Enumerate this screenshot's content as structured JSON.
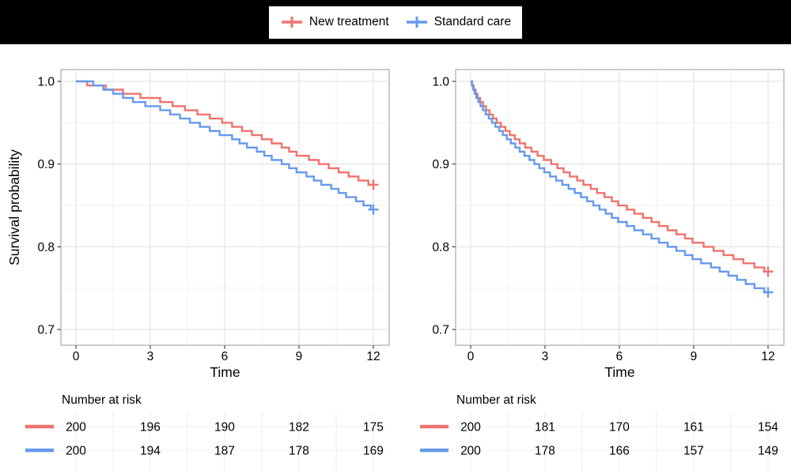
{
  "colors": {
    "new_treatment": "#F0736E",
    "standard_care": "#6699EE",
    "header_bg": "#000000",
    "legend_bg": "#FFFFFF",
    "panel_bg": "#FFFFFF",
    "grid_major": "#E4E4E4",
    "grid_minor": "#F1F1F1",
    "risk_grid": "#ECECEC",
    "panel_border": "#ABABAB",
    "tick_mark": "#333333",
    "text": "#000000"
  },
  "legend": {
    "items": [
      {
        "label": "New treatment",
        "color_key": "new_treatment",
        "symbol": "line-with-plus"
      },
      {
        "label": "Standard care",
        "color_key": "standard_care",
        "symbol": "line-with-plus"
      }
    ]
  },
  "chart_data": [
    {
      "type": "line",
      "subtype": "kaplan-meier-step",
      "panel": "left",
      "xlabel": "Time",
      "ylabel": "Survival probability",
      "xlim": [
        0,
        12
      ],
      "ylim": [
        0.7,
        1.0
      ],
      "x_ticks": [
        0,
        3,
        6,
        9,
        12
      ],
      "x_minor": [
        1.5,
        4.5,
        7.5,
        10.5
      ],
      "y_ticks": [
        1.0,
        0.9,
        0.8,
        0.7
      ],
      "y_tick_labels": [
        "1.0",
        "0.9",
        "0.8",
        "0.7"
      ],
      "y_minor": [
        0.95,
        0.85,
        0.75
      ],
      "grid": true,
      "censor_mark_at_end": true,
      "series": [
        {
          "name": "New treatment",
          "color_key": "new_treatment",
          "end_value": 0.875,
          "points": [
            [
              0,
              1
            ],
            [
              0.45,
              0.995
            ],
            [
              1.2,
              0.99
            ],
            [
              1.9,
              0.985
            ],
            [
              2.6,
              0.98
            ],
            [
              3.4,
              0.975
            ],
            [
              3.9,
              0.97
            ],
            [
              4.4,
              0.965
            ],
            [
              4.9,
              0.96
            ],
            [
              5.4,
              0.955
            ],
            [
              5.9,
              0.95
            ],
            [
              6.3,
              0.945
            ],
            [
              6.7,
              0.94
            ],
            [
              7.1,
              0.935
            ],
            [
              7.5,
              0.93
            ],
            [
              7.9,
              0.925
            ],
            [
              8.3,
              0.92
            ],
            [
              8.6,
              0.915
            ],
            [
              8.9,
              0.91
            ],
            [
              9.4,
              0.905
            ],
            [
              9.8,
              0.9
            ],
            [
              10.2,
              0.895
            ],
            [
              10.6,
              0.89
            ],
            [
              11.0,
              0.885
            ],
            [
              11.4,
              0.88
            ],
            [
              11.8,
              0.875
            ]
          ]
        },
        {
          "name": "Standard care",
          "color_key": "standard_care",
          "end_value": 0.845,
          "points": [
            [
              0,
              1
            ],
            [
              0.7,
              0.995
            ],
            [
              1.1,
              0.99
            ],
            [
              1.5,
              0.985
            ],
            [
              1.9,
              0.98
            ],
            [
              2.3,
              0.975
            ],
            [
              2.8,
              0.97
            ],
            [
              3.4,
              0.965
            ],
            [
              3.8,
              0.96
            ],
            [
              4.2,
              0.955
            ],
            [
              4.6,
              0.95
            ],
            [
              5.0,
              0.945
            ],
            [
              5.4,
              0.94
            ],
            [
              5.8,
              0.935
            ],
            [
              6.3,
              0.93
            ],
            [
              6.6,
              0.925
            ],
            [
              6.9,
              0.92
            ],
            [
              7.3,
              0.915
            ],
            [
              7.6,
              0.91
            ],
            [
              7.9,
              0.905
            ],
            [
              8.3,
              0.9
            ],
            [
              8.6,
              0.895
            ],
            [
              8.9,
              0.89
            ],
            [
              9.3,
              0.885
            ],
            [
              9.6,
              0.88
            ],
            [
              9.9,
              0.875
            ],
            [
              10.3,
              0.87
            ],
            [
              10.6,
              0.865
            ],
            [
              10.9,
              0.86
            ],
            [
              11.3,
              0.855
            ],
            [
              11.6,
              0.85
            ],
            [
              11.9,
              0.845
            ]
          ]
        }
      ],
      "number_at_risk": {
        "title": "Number at risk",
        "times": [
          0,
          3,
          6,
          9,
          12
        ],
        "rows": [
          {
            "name": "New treatment",
            "color_key": "new_treatment",
            "values": [
              200,
              196,
              190,
              182,
              175
            ]
          },
          {
            "name": "Standard care",
            "color_key": "standard_care",
            "values": [
              200,
              194,
              187,
              178,
              169
            ]
          }
        ]
      }
    },
    {
      "type": "line",
      "subtype": "kaplan-meier-step",
      "panel": "right",
      "xlabel": "Time",
      "ylabel": "Survival probability",
      "xlim": [
        0,
        12
      ],
      "ylim": [
        0.7,
        1.0
      ],
      "x_ticks": [
        0,
        3,
        6,
        9,
        12
      ],
      "x_minor": [
        1.5,
        4.5,
        7.5,
        10.5
      ],
      "y_ticks": [
        1.0,
        0.9,
        0.8,
        0.7
      ],
      "y_tick_labels": [
        "1.0",
        "0.9",
        "0.8",
        "0.7"
      ],
      "y_minor": [
        0.95,
        0.85,
        0.75
      ],
      "grid": true,
      "censor_mark_at_end": true,
      "series": [
        {
          "name": "New treatment",
          "color_key": "new_treatment",
          "end_value": 0.77,
          "points": [
            [
              0,
              1
            ],
            [
              0.06,
              0.995
            ],
            [
              0.12,
              0.99
            ],
            [
              0.2,
              0.985
            ],
            [
              0.28,
              0.98
            ],
            [
              0.38,
              0.975
            ],
            [
              0.5,
              0.97
            ],
            [
              0.62,
              0.965
            ],
            [
              0.76,
              0.96
            ],
            [
              0.9,
              0.955
            ],
            [
              1.05,
              0.95
            ],
            [
              1.22,
              0.945
            ],
            [
              1.4,
              0.94
            ],
            [
              1.58,
              0.935
            ],
            [
              1.78,
              0.93
            ],
            [
              1.98,
              0.925
            ],
            [
              2.2,
              0.92
            ],
            [
              2.45,
              0.915
            ],
            [
              2.7,
              0.91
            ],
            [
              2.95,
              0.905
            ],
            [
              3.25,
              0.9
            ],
            [
              3.5,
              0.895
            ],
            [
              3.75,
              0.89
            ],
            [
              4.0,
              0.885
            ],
            [
              4.3,
              0.88
            ],
            [
              4.55,
              0.875
            ],
            [
              4.85,
              0.87
            ],
            [
              5.1,
              0.865
            ],
            [
              5.4,
              0.86
            ],
            [
              5.7,
              0.855
            ],
            [
              5.95,
              0.85
            ],
            [
              6.3,
              0.845
            ],
            [
              6.6,
              0.84
            ],
            [
              6.95,
              0.835
            ],
            [
              7.3,
              0.83
            ],
            [
              7.6,
              0.825
            ],
            [
              7.95,
              0.82
            ],
            [
              8.3,
              0.815
            ],
            [
              8.65,
              0.81
            ],
            [
              8.95,
              0.805
            ],
            [
              9.4,
              0.8
            ],
            [
              9.8,
              0.795
            ],
            [
              10.2,
              0.79
            ],
            [
              10.6,
              0.785
            ],
            [
              11.0,
              0.78
            ],
            [
              11.45,
              0.775
            ],
            [
              11.85,
              0.77
            ]
          ]
        },
        {
          "name": "Standard care",
          "color_key": "standard_care",
          "end_value": 0.745,
          "points": [
            [
              0,
              1
            ],
            [
              0.05,
              0.995
            ],
            [
              0.1,
              0.99
            ],
            [
              0.16,
              0.985
            ],
            [
              0.23,
              0.98
            ],
            [
              0.31,
              0.975
            ],
            [
              0.4,
              0.97
            ],
            [
              0.5,
              0.965
            ],
            [
              0.61,
              0.96
            ],
            [
              0.73,
              0.955
            ],
            [
              0.86,
              0.95
            ],
            [
              1.0,
              0.945
            ],
            [
              1.15,
              0.94
            ],
            [
              1.3,
              0.935
            ],
            [
              1.46,
              0.93
            ],
            [
              1.62,
              0.925
            ],
            [
              1.8,
              0.92
            ],
            [
              1.98,
              0.915
            ],
            [
              2.17,
              0.91
            ],
            [
              2.37,
              0.905
            ],
            [
              2.57,
              0.9
            ],
            [
              2.77,
              0.895
            ],
            [
              2.97,
              0.89
            ],
            [
              3.2,
              0.885
            ],
            [
              3.45,
              0.88
            ],
            [
              3.7,
              0.875
            ],
            [
              3.95,
              0.87
            ],
            [
              4.2,
              0.865
            ],
            [
              4.45,
              0.86
            ],
            [
              4.7,
              0.855
            ],
            [
              4.95,
              0.85
            ],
            [
              5.2,
              0.845
            ],
            [
              5.45,
              0.84
            ],
            [
              5.7,
              0.835
            ],
            [
              5.95,
              0.83
            ],
            [
              6.3,
              0.825
            ],
            [
              6.6,
              0.82
            ],
            [
              6.95,
              0.815
            ],
            [
              7.3,
              0.81
            ],
            [
              7.6,
              0.805
            ],
            [
              7.95,
              0.8
            ],
            [
              8.3,
              0.795
            ],
            [
              8.65,
              0.79
            ],
            [
              8.95,
              0.785
            ],
            [
              9.3,
              0.78
            ],
            [
              9.7,
              0.775
            ],
            [
              10.05,
              0.77
            ],
            [
              10.4,
              0.765
            ],
            [
              10.75,
              0.76
            ],
            [
              11.1,
              0.755
            ],
            [
              11.45,
              0.75
            ],
            [
              11.85,
              0.745
            ]
          ]
        }
      ],
      "number_at_risk": {
        "title": "Number at risk",
        "times": [
          0,
          3,
          6,
          9,
          12
        ],
        "rows": [
          {
            "name": "New treatment",
            "color_key": "new_treatment",
            "values": [
              200,
              181,
              170,
              161,
              154
            ]
          },
          {
            "name": "Standard care",
            "color_key": "standard_care",
            "values": [
              200,
              178,
              166,
              157,
              149
            ]
          }
        ]
      }
    }
  ]
}
